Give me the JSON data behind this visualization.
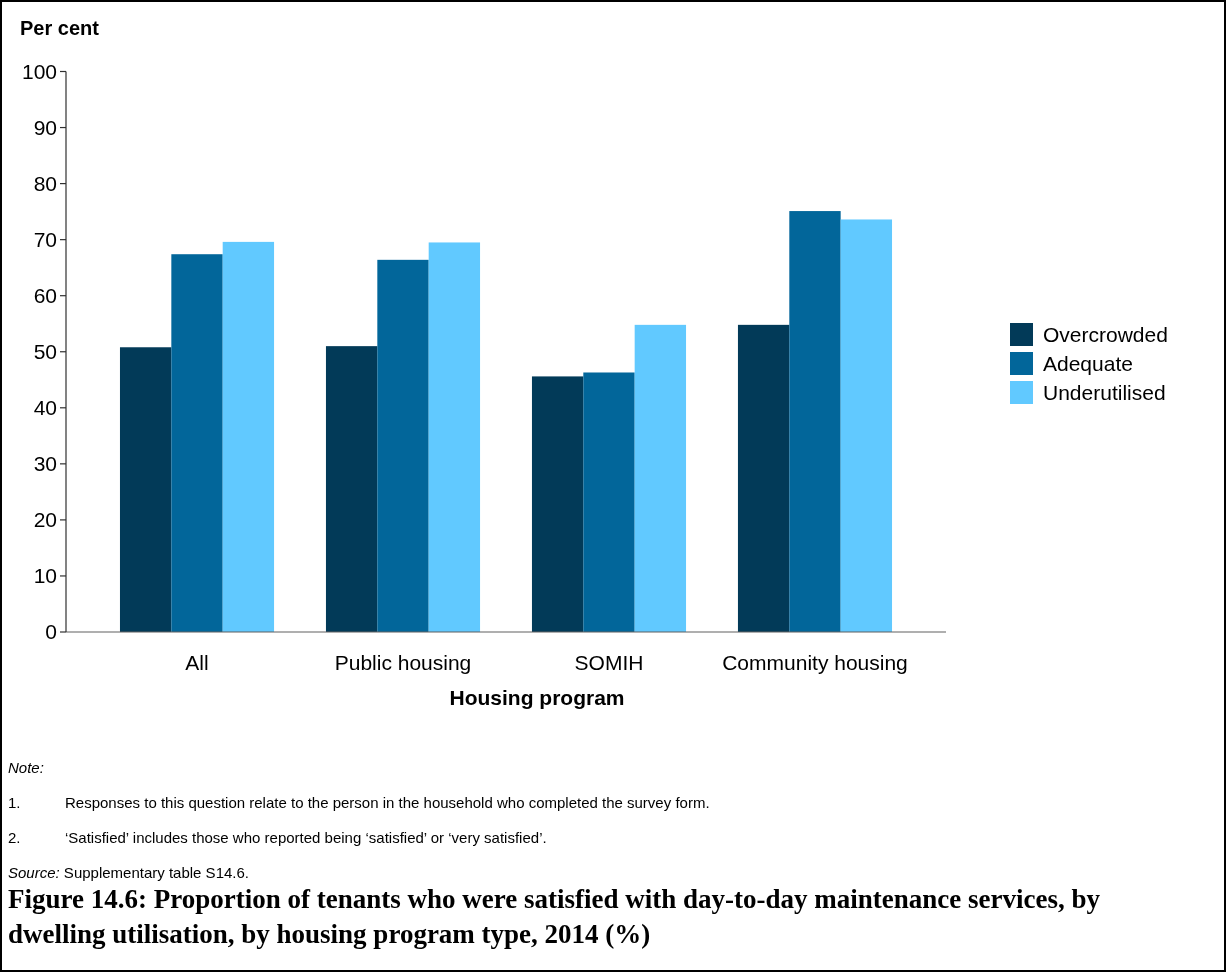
{
  "chart_data": {
    "type": "bar",
    "title": "Figure 14.6: Proportion of tenants who were satisfied with day-to-day maintenance services, by dwelling utilisation, by housing program type, 2014 (%)",
    "xlabel": "Housing program",
    "ylabel": "Per cent",
    "categories": [
      "All",
      "Public housing",
      "SOMIH",
      "Community housing"
    ],
    "series": [
      {
        "name": "Overcrowded",
        "color": "#023a58",
        "values": [
          50.8,
          51.0,
          45.6,
          54.8
        ]
      },
      {
        "name": "Adequate",
        "color": "#02669a",
        "values": [
          67.4,
          66.4,
          46.3,
          75.1
        ]
      },
      {
        "name": "Underutilised",
        "color": "#61c9ff",
        "values": [
          69.6,
          69.5,
          54.8,
          73.6
        ]
      }
    ],
    "ylim": [
      0,
      100
    ],
    "yticks": [
      0,
      10,
      20,
      30,
      40,
      50,
      60,
      70,
      80,
      90,
      100
    ],
    "grid": false,
    "legend": "right",
    "annotations": [
      "Note:",
      "1. Responses to this question relate to the person in the household who completed the survey form.",
      "2. ‘Satisfied’ includes those who reported being ‘satisfied’ or ‘very satisfied’.",
      "Source: Supplementary table S14.6."
    ]
  }
}
